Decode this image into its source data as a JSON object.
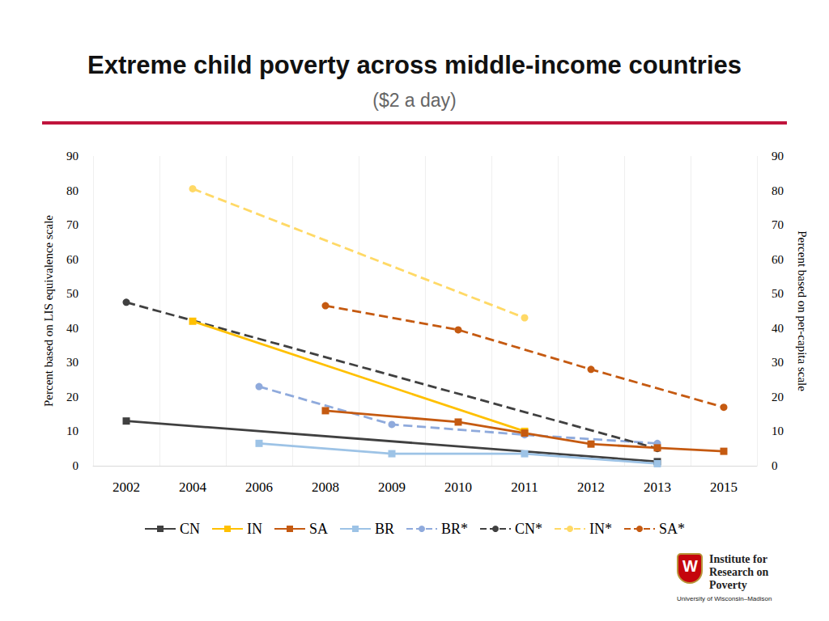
{
  "chart_data": {
    "type": "line",
    "title": "Extreme child poverty across middle-income countries",
    "subtitle": "($2 a day)",
    "y_label": "Percent based on LIS equivalence scale",
    "y2_label": "Percent based on per-capita scale",
    "categories": [
      "2002",
      "2004",
      "2006",
      "2008",
      "2009",
      "2010",
      "2011",
      "2012",
      "2013",
      "2015"
    ],
    "ylim": [
      0,
      90
    ],
    "yticks": [
      0,
      10,
      20,
      30,
      40,
      50,
      60,
      70,
      80,
      90
    ],
    "y2lim": [
      0,
      90
    ],
    "y2ticks": [
      0,
      10,
      20,
      30,
      40,
      50,
      60,
      70,
      80,
      90
    ],
    "grid": true,
    "legend": "bottom",
    "annotations": [
      "Institute for",
      "Research on",
      "Poverty",
      "University of Wisconsin–Madison"
    ],
    "series": [
      {
        "name": "CN",
        "color": "#404040",
        "marker": "square",
        "line_style": "solid",
        "values": [
          13,
          null,
          null,
          null,
          null,
          null,
          null,
          null,
          1.2,
          null
        ]
      },
      {
        "name": "IN",
        "color": "#FFC000",
        "marker": "square",
        "line_style": "solid",
        "values": [
          null,
          42,
          null,
          null,
          null,
          null,
          10,
          null,
          null,
          null
        ]
      },
      {
        "name": "SA",
        "color": "#C55A11",
        "marker": "square",
        "line_style": "solid",
        "values": [
          null,
          null,
          null,
          16,
          null,
          12.7,
          9.5,
          6.3,
          5.2,
          4.2
        ]
      },
      {
        "name": "BR",
        "color": "#9DC3E6",
        "marker": "square",
        "line_style": "solid",
        "values": [
          null,
          null,
          6.5,
          null,
          3.5,
          null,
          3.5,
          null,
          0.6,
          null
        ]
      },
      {
        "name": "BR*",
        "color": "#8FAADC",
        "marker": "circle",
        "line_style": "dashed",
        "axis": "y2",
        "values": [
          null,
          null,
          23,
          null,
          12,
          null,
          9,
          null,
          6.5,
          null
        ]
      },
      {
        "name": "CN*",
        "color": "#404040",
        "marker": "circle",
        "line_style": "dashed",
        "axis": "y2",
        "values": [
          47.5,
          null,
          null,
          null,
          null,
          null,
          null,
          null,
          5,
          null
        ]
      },
      {
        "name": "IN*",
        "color": "#FFD966",
        "marker": "circle",
        "line_style": "dashed",
        "axis": "y2",
        "values": [
          null,
          80.5,
          null,
          null,
          null,
          null,
          43,
          null,
          null,
          null
        ]
      },
      {
        "name": "SA*",
        "color": "#C55A11",
        "marker": "circle",
        "line_style": "dashed",
        "axis": "y2",
        "values": [
          null,
          null,
          null,
          46.5,
          null,
          39.5,
          null,
          28,
          null,
          17
        ]
      }
    ]
  }
}
